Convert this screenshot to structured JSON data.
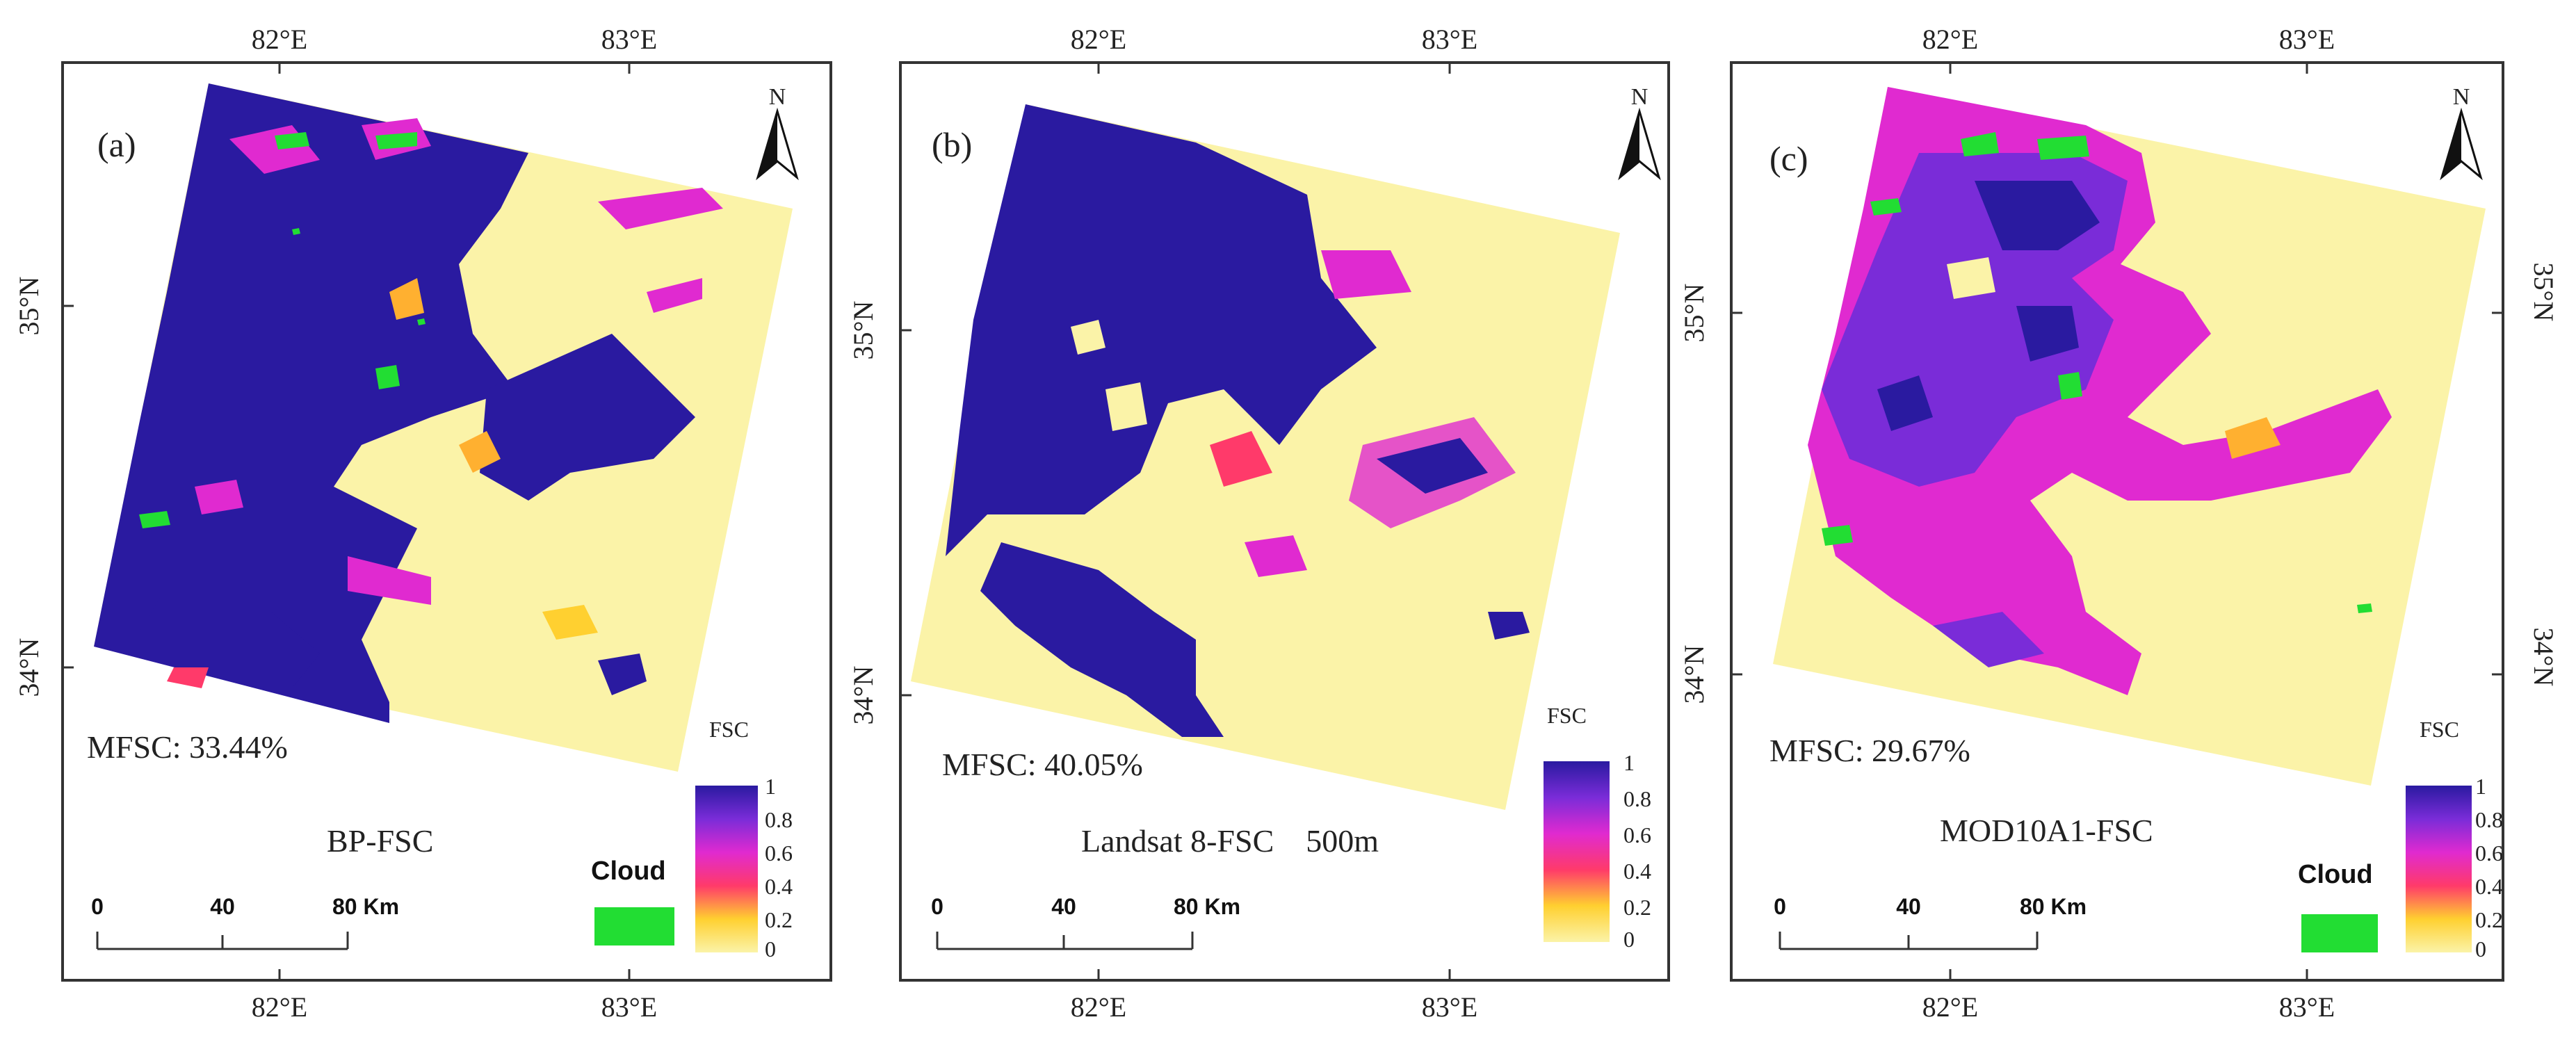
{
  "panels": [
    {
      "label": "(a)",
      "title": "BP-FSC",
      "mfsc": "MFSC: 33.44%",
      "top_lon": [
        "82°E",
        "83°E"
      ],
      "bottom_lon": [
        "82°E",
        "83°E"
      ],
      "left_lat": [
        "35°N",
        "34°N"
      ],
      "legend_title": "FSC",
      "legend_ticks": [
        "1",
        "0.8",
        "0.6",
        "0.4",
        "0.2",
        "0"
      ],
      "scale_ticks": [
        "0",
        "40",
        "80 Km"
      ],
      "cloud_label": "Cloud",
      "north": "N",
      "has_cloud_legend": true
    },
    {
      "label": "(b)",
      "title": "Landsat 8-FSC    500m",
      "mfsc": "MFSC: 40.05%",
      "top_lon": [
        "82°E",
        "83°E"
      ],
      "bottom_lon": [
        "82°E",
        "83°E"
      ],
      "left_lat": [
        "35°N",
        "34°N"
      ],
      "legend_title": "FSC",
      "legend_ticks": [
        "1",
        "0.8",
        "0.6",
        "0.4",
        "0.2",
        "0"
      ],
      "scale_ticks": [
        "0",
        "40",
        "80 Km"
      ],
      "north": "N",
      "has_cloud_legend": false
    },
    {
      "label": "(c)",
      "title": "MOD10A1-FSC",
      "mfsc": "MFSC: 29.67%",
      "top_lon": [
        "82°E",
        "83°E"
      ],
      "bottom_lon": [
        "82°E",
        "83°E"
      ],
      "left_lat": [
        "35°N",
        "34°N"
      ],
      "right_lat": [
        "35°N",
        "34°N"
      ],
      "legend_title": "FSC",
      "legend_ticks": [
        "1",
        "0.8",
        "0.6",
        "0.4",
        "0.2",
        "0"
      ],
      "scale_ticks": [
        "0",
        "40",
        "80 Km"
      ],
      "cloud_label": "Cloud",
      "north": "N",
      "has_cloud_legend": true
    }
  ],
  "colors": {
    "snow_full": "#2a1aa0",
    "snow_high": "#7a2cd8",
    "snow_mid": "#e02ad0",
    "snow_low": "#ff3a6a",
    "snow_lower": "#ffb030",
    "no_snow": "#fbf3a8",
    "cloud": "#22dd33",
    "frame": "#333333"
  }
}
